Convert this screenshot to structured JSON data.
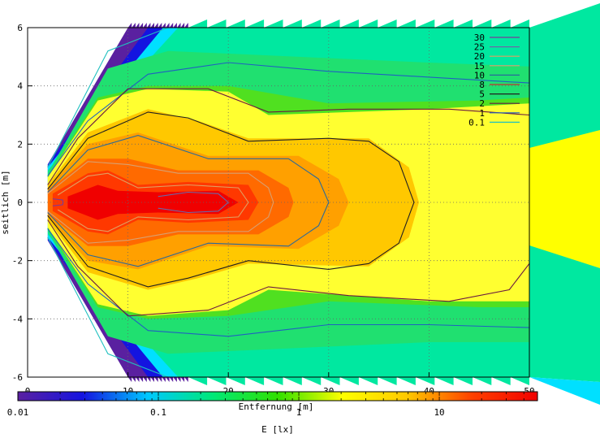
{
  "chart_data": {
    "type": "heatmap",
    "title": "",
    "xlabel": "Entfernung [m]",
    "ylabel": "seitlich [m]",
    "xlim": [
      0,
      50
    ],
    "ylim": [
      -6,
      6
    ],
    "x_ticks": [
      "0",
      "10",
      "20",
      "30",
      "40",
      "50"
    ],
    "y_ticks": [
      "-6",
      "-4",
      "-2",
      "0",
      "2",
      "4",
      "6"
    ],
    "grid": true,
    "colorbar": {
      "label": "E [lx]",
      "scale": "log",
      "range": [
        0.01,
        50
      ],
      "tick_labels": [
        "0.01",
        "0.1",
        "1",
        "10"
      ],
      "stops": [
        "#5a20a0",
        "#1414e0",
        "#00c8ff",
        "#00e878",
        "#30e000",
        "#ffff00",
        "#ffc800",
        "#ff4000",
        "#f00000"
      ]
    },
    "contour_levels": [
      {
        "label": "30",
        "color": "#7a3a9a"
      },
      {
        "label": "25",
        "color": "#6a6aa8"
      },
      {
        "label": "20",
        "color": "#e0a060"
      },
      {
        "label": "15",
        "color": "#d8a070"
      },
      {
        "label": "10",
        "color": "#2a6a9a"
      },
      {
        "label": "8",
        "color": "#c03030"
      },
      {
        "label": "5",
        "color": "#202020"
      },
      {
        "label": "2",
        "color": "#6a1a40"
      },
      {
        "label": "1",
        "color": "#2060c0"
      },
      {
        "label": "0.1",
        "color": "#20c0c0"
      }
    ],
    "contours": [
      {
        "level": "0.1",
        "points": [
          [
            2,
            1.2
          ],
          [
            8,
            5.2
          ],
          [
            14,
            6.0
          ]
        ]
      },
      {
        "level": "0.1",
        "points": [
          [
            2,
            -1.2
          ],
          [
            8,
            -5.2
          ],
          [
            14,
            -6.0
          ]
        ]
      },
      {
        "level": "1",
        "points": [
          [
            2,
            0.9
          ],
          [
            6,
            2.8
          ],
          [
            12,
            4.4
          ],
          [
            20,
            4.8
          ],
          [
            30,
            4.5
          ],
          [
            40,
            4.3
          ],
          [
            50,
            4.1
          ]
        ]
      },
      {
        "level": "1",
        "points": [
          [
            2,
            -0.9
          ],
          [
            6,
            -2.8
          ],
          [
            12,
            -4.4
          ],
          [
            20,
            -4.6
          ],
          [
            30,
            -4.2
          ],
          [
            40,
            -4.2
          ],
          [
            50,
            -4.3
          ]
        ]
      },
      {
        "level": "2",
        "points": [
          [
            2,
            0.6
          ],
          [
            5,
            2.2
          ],
          [
            10,
            3.9
          ],
          [
            18,
            3.9
          ],
          [
            24,
            3.1
          ],
          [
            32,
            3.2
          ],
          [
            42,
            3.2
          ],
          [
            50,
            3.0
          ]
        ]
      },
      {
        "level": "2",
        "points": [
          [
            2,
            -0.6
          ],
          [
            5,
            -2.2
          ],
          [
            10,
            -3.9
          ],
          [
            18,
            -3.7
          ],
          [
            24,
            -2.9
          ],
          [
            32,
            -3.2
          ],
          [
            42,
            -3.4
          ],
          [
            48,
            -3.0
          ],
          [
            50,
            -2.1
          ]
        ]
      },
      {
        "level": "5",
        "points": [
          [
            2,
            0.45
          ],
          [
            6,
            2.2
          ],
          [
            12,
            3.1
          ],
          [
            16,
            2.9
          ],
          [
            22,
            2.1
          ],
          [
            30,
            2.2
          ],
          [
            34,
            2.1
          ],
          [
            37,
            1.4
          ],
          [
            38.5,
            0.0
          ],
          [
            37,
            -1.4
          ],
          [
            34,
            -2.1
          ],
          [
            30,
            -2.3
          ],
          [
            22,
            -2.0
          ],
          [
            16,
            -2.6
          ],
          [
            12,
            -2.9
          ],
          [
            6,
            -2.2
          ],
          [
            2,
            -0.45
          ]
        ]
      },
      {
        "level": "10",
        "points": [
          [
            2,
            0.35
          ],
          [
            6,
            1.8
          ],
          [
            11,
            2.3
          ],
          [
            18,
            1.5
          ],
          [
            26,
            1.5
          ],
          [
            29,
            0.8
          ],
          [
            30,
            0.0
          ],
          [
            29,
            -0.8
          ],
          [
            26,
            -1.5
          ],
          [
            18,
            -1.4
          ],
          [
            11,
            -2.2
          ],
          [
            6,
            -1.8
          ],
          [
            2,
            -0.35
          ]
        ]
      },
      {
        "level": "15",
        "points": [
          [
            2,
            0.3
          ],
          [
            6,
            1.4
          ],
          [
            10,
            1.3
          ],
          [
            15,
            1.0
          ],
          [
            22,
            1.0
          ],
          [
            24,
            0.5
          ],
          [
            24.5,
            0.0
          ],
          [
            24,
            -0.5
          ],
          [
            22,
            -1.0
          ],
          [
            15,
            -1.0
          ],
          [
            10,
            -1.3
          ],
          [
            6,
            -1.4
          ],
          [
            2,
            -0.3
          ]
        ]
      },
      {
        "level": "20",
        "points": [
          [
            3,
            0.25
          ],
          [
            6,
            0.9
          ],
          [
            8,
            1.0
          ],
          [
            11,
            0.5
          ],
          [
            16,
            0.6
          ],
          [
            21,
            0.5
          ],
          [
            22,
            0.0
          ],
          [
            21,
            -0.5
          ],
          [
            16,
            -0.6
          ],
          [
            11,
            -0.5
          ],
          [
            8,
            -1.0
          ],
          [
            6,
            -0.9
          ],
          [
            3,
            -0.25
          ]
        ]
      },
      {
        "level": "25",
        "points": [
          [
            13,
            0.2
          ],
          [
            16,
            0.35
          ],
          [
            19,
            0.3
          ],
          [
            20,
            0.0
          ],
          [
            19,
            -0.3
          ],
          [
            16,
            -0.35
          ],
          [
            13,
            -0.2
          ]
        ]
      },
      {
        "level": "30",
        "points": [
          [
            2.5,
            0.12
          ],
          [
            3.5,
            0.08
          ],
          [
            3.5,
            -0.08
          ],
          [
            2.5,
            -0.12
          ]
        ]
      }
    ]
  }
}
